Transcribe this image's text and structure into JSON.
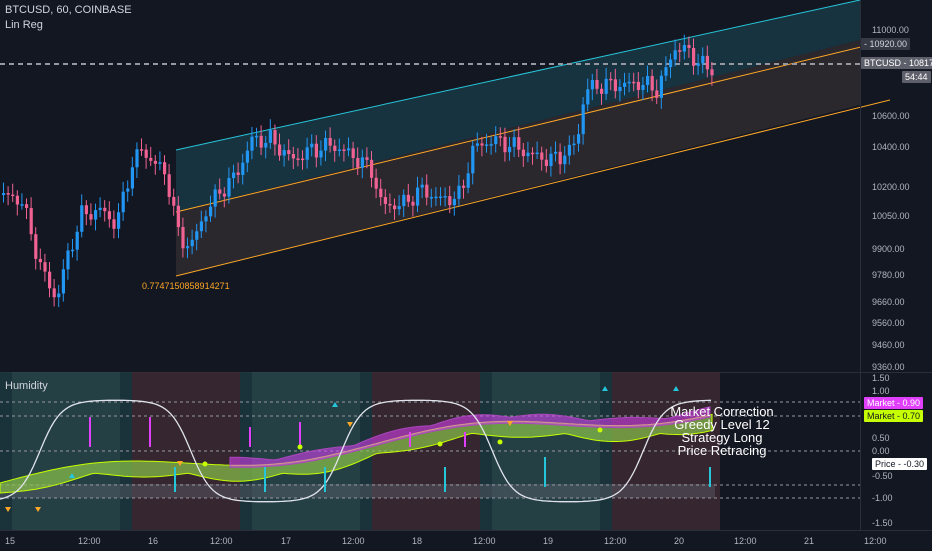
{
  "header": {
    "symbol": "BTCUSD, 60, COINBASE",
    "indicator": "Lin Reg"
  },
  "regression": {
    "label": "0.7747150858914271"
  },
  "price_axis": {
    "ticks": [
      "11000.00",
      "10920.00",
      "10600.00",
      "10400.00",
      "10200.00",
      "10050.00",
      "9900.00",
      "9780.00",
      "9660.00",
      "9560.00",
      "9460.00",
      "9360.00"
    ],
    "symbol_tag": "BTCUSD",
    "last_price": "10817.12",
    "countdown": "54:44",
    "level_tag": "10920.00"
  },
  "oscillator": {
    "name": "Humidity",
    "ticks": [
      "1.50",
      "1.00",
      "0.50",
      "0.00",
      "-0.50",
      "-1.00",
      "-1.50"
    ],
    "market_pink": {
      "label": "Market",
      "value": "0.90"
    },
    "market_green": {
      "label": "Market",
      "value": "0.70"
    },
    "price_tag": {
      "label": "Price",
      "value": "-0.30"
    },
    "status_lines": [
      "Market Correction",
      "Greedy Level 12",
      "Strategy Long",
      "Price Retracing"
    ]
  },
  "time_axis": {
    "labels": [
      "15",
      "12:00",
      "16",
      "12:00",
      "17",
      "12:00",
      "18",
      "12:00",
      "19",
      "12:00",
      "20",
      "12:00",
      "21",
      "12:00"
    ]
  },
  "colors": {
    "background": "#131722",
    "up_candle": "#2196f3",
    "down_candle": "#f06292",
    "channel_upper": "#26c6da",
    "channel_lower": "#ffa726",
    "osc_pink": "#e040fb",
    "osc_green": "#c6ff00"
  }
}
